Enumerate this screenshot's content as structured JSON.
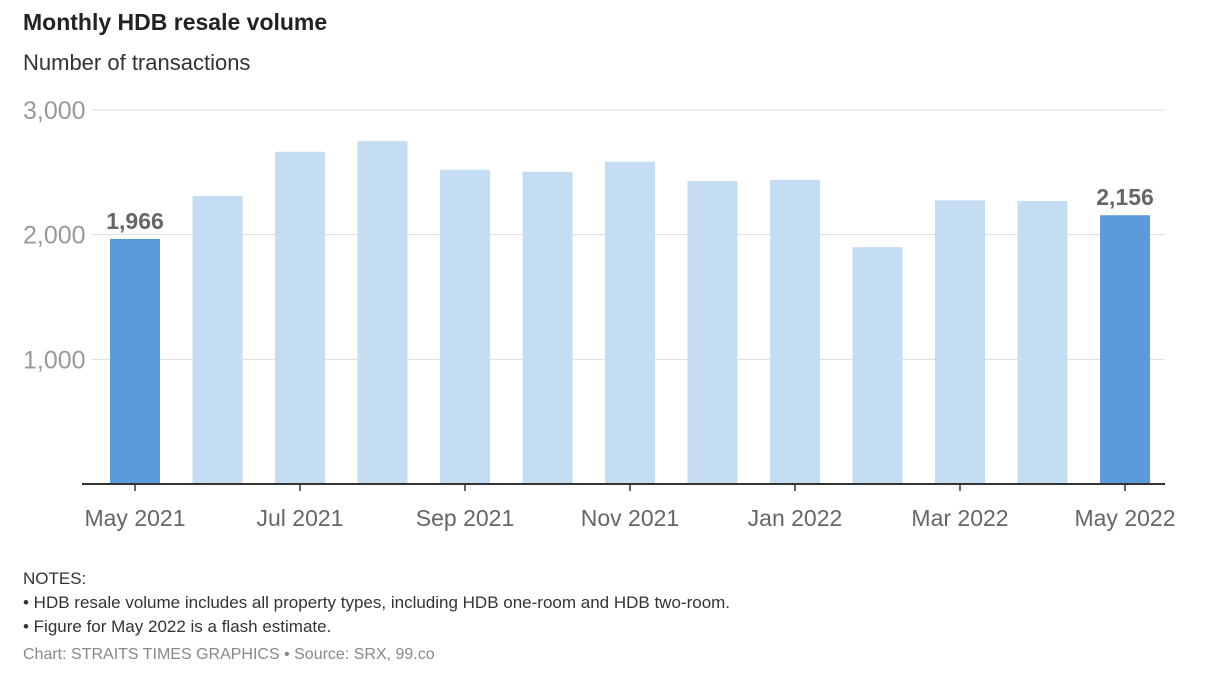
{
  "title": "Monthly HDB resale volume",
  "subtitle": "Number of transactions",
  "notes": {
    "heading": "NOTES:",
    "lines": [
      "• HDB resale volume includes all property types, including HDB one-room and HDB two-room.",
      "• Figure for May 2022 is a flash estimate."
    ]
  },
  "credit": "Chart: STRAITS TIMES GRAPHICS • Source: SRX, 99.co",
  "colors": {
    "highlight": "#5b9bdb",
    "bar": "#c5ddf2",
    "grid": "#dddddd",
    "axis": "#333333",
    "tick_label": "#666666",
    "y_tick_label": "#999999",
    "data_label": "#666666"
  },
  "chart_data": {
    "type": "bar",
    "title": "Monthly HDB resale volume",
    "subtitle": "Number of transactions",
    "xlabel": "",
    "ylabel": "",
    "categories": [
      "May 2021",
      "Jun 2021",
      "Jul 2021",
      "Aug 2021",
      "Sep 2021",
      "Oct 2021",
      "Nov 2021",
      "Dec 2021",
      "Jan 2022",
      "Feb 2022",
      "Mar 2022",
      "Apr 2022",
      "May 2022"
    ],
    "values": [
      1966,
      2310,
      2665,
      2750,
      2520,
      2505,
      2585,
      2430,
      2440,
      1900,
      2275,
      2270,
      2156
    ],
    "highlighted": [
      0,
      12
    ],
    "data_labels": [
      {
        "index": 0,
        "text": "1,966"
      },
      {
        "index": 12,
        "text": "2,156"
      }
    ],
    "x_tick_labels": [
      {
        "index": 0,
        "text": "May 2021"
      },
      {
        "index": 2,
        "text": "Jul 2021"
      },
      {
        "index": 4,
        "text": "Sep 2021"
      },
      {
        "index": 6,
        "text": "Nov 2021"
      },
      {
        "index": 8,
        "text": "Jan 2022"
      },
      {
        "index": 10,
        "text": "Mar 2022"
      },
      {
        "index": 12,
        "text": "May 2022"
      }
    ],
    "y_ticks": [
      {
        "value": 1000,
        "text": "1,000"
      },
      {
        "value": 2000,
        "text": "2,000"
      },
      {
        "value": 3000,
        "text": "3,000"
      }
    ],
    "ylim": [
      0,
      3000
    ],
    "grid": true,
    "legend": "none"
  }
}
